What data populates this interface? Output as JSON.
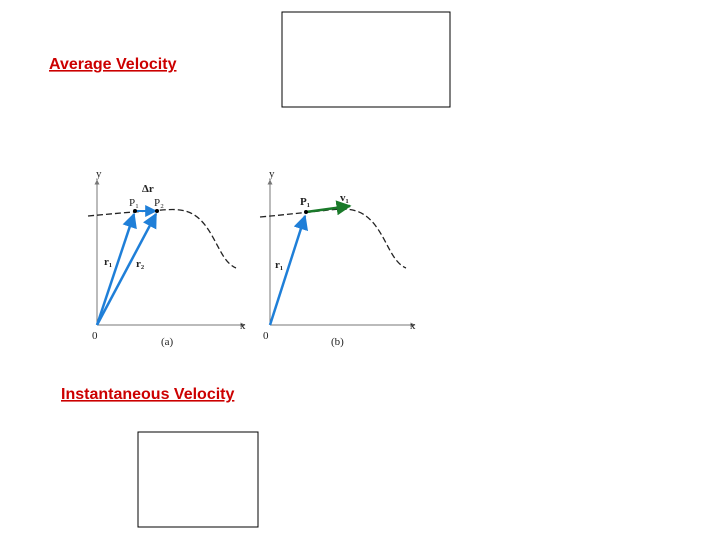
{
  "slide": {
    "heading_average": "Average Velocity",
    "heading_instantaneous": "Instantaneous Velocity",
    "figure": {
      "panel_a": {
        "y_axis": "y",
        "x_axis": "x",
        "origin": "0",
        "delta_r": "Δr",
        "p1": "P₁",
        "p2": "P₂",
        "r1": "r₁",
        "r2": "r₂",
        "caption": "(a)"
      },
      "panel_b": {
        "y_axis": "y",
        "x_axis": "x",
        "origin": "0",
        "p1": "P₁",
        "v1": "v₁",
        "r1": "r₁",
        "caption": "(b)"
      }
    }
  }
}
